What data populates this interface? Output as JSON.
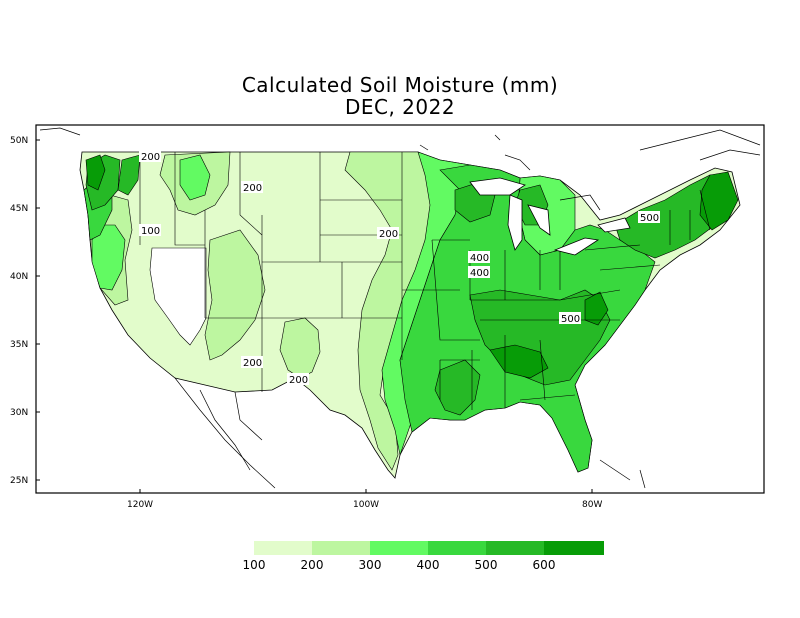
{
  "title": "Calculated Soil Moisture (mm)",
  "subtitle": "DEC, 2022",
  "axes": {
    "lat_ticks": [
      "50N",
      "45N",
      "40N",
      "35N",
      "30N",
      "25N"
    ],
    "lon_ticks": [
      "120W",
      "100W",
      "80W"
    ]
  },
  "contour_labels": [
    "200",
    "200",
    "100",
    "200",
    "200",
    "200",
    "400",
    "400",
    "500",
    "500"
  ],
  "legend": {
    "labels": [
      "100",
      "200",
      "300",
      "400",
      "500",
      "600"
    ],
    "colors": [
      "#e2fccb",
      "#bdf6a0",
      "#62fa62",
      "#39d83e",
      "#26b926",
      "#079c07"
    ]
  },
  "colors": {
    "missing": "#ffffff",
    "outline": "#000000"
  }
}
